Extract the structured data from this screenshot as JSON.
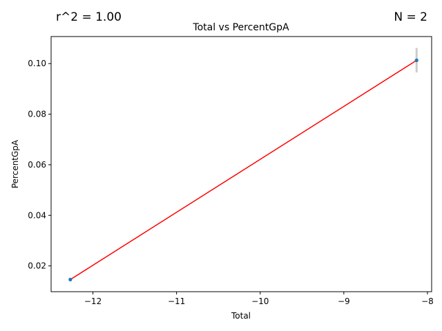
{
  "annotations": {
    "r2": "r^2 = 1.00",
    "n": "N = 2"
  },
  "chart_data": {
    "type": "scatter",
    "title": "Total vs PercentGpA",
    "xlabel": "Total",
    "ylabel": "PercentGpA",
    "xlim": [
      -12.5,
      -7.95
    ],
    "ylim": [
      0.0098,
      0.1107
    ],
    "x_ticks": [
      -12,
      -11,
      -10,
      -9,
      -8
    ],
    "x_tick_labels": [
      "−12",
      "−11",
      "−10",
      "−9",
      "−8"
    ],
    "y_ticks": [
      0.02,
      0.04,
      0.06,
      0.08,
      0.1
    ],
    "y_tick_labels": [
      "0.02",
      "0.04",
      "0.06",
      "0.08",
      "0.10"
    ],
    "grid": false,
    "points": [
      {
        "x": -12.27,
        "y": 0.0146
      },
      {
        "x": -8.13,
        "y": 0.1013
      }
    ],
    "error_bars": [
      {
        "x": -8.13,
        "low": 0.0965,
        "high": 0.1062
      }
    ],
    "fit_line": {
      "x": [
        -12.27,
        -8.13
      ],
      "y": [
        0.0146,
        0.1013
      ]
    },
    "colors": {
      "points": "#1f77b4",
      "fit_line": "#ff0000",
      "error_bars": "#cccccc",
      "axes": "#000000"
    }
  }
}
